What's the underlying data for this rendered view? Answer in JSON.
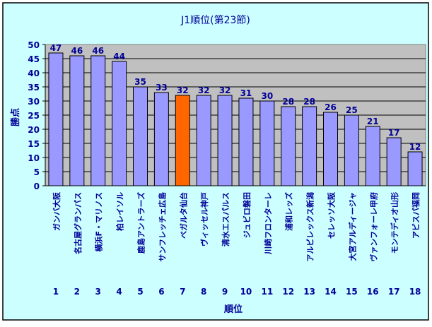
{
  "chart_data": {
    "type": "bar",
    "title": "J1順位(第23節)",
    "xlabel": "順位",
    "ylabel": "勝点",
    "ylim": [
      0,
      50
    ],
    "yticks": [
      0,
      5,
      10,
      15,
      20,
      25,
      30,
      35,
      40,
      45,
      50
    ],
    "grid": true,
    "legend": "none",
    "ranks": [
      "1",
      "2",
      "3",
      "4",
      "5",
      "6",
      "7",
      "8",
      "9",
      "10",
      "11",
      "12",
      "13",
      "14",
      "15",
      "16",
      "17",
      "18"
    ],
    "categories": [
      "ガンバ大阪",
      "名古屋グランパス",
      "横浜F・マリノス",
      "柏レイソル",
      "鹿島アントラーズ",
      "サンフレッチェ広島",
      "ベガルタ仙台",
      "ヴィッセル神戸",
      "清水エスパルス",
      "ジュビロ磐田",
      "川崎フロンターレ",
      "浦和レッズ",
      "アルビレックス新潟",
      "セレッソ大阪",
      "大宮アルディージャ",
      "ヴァンフォーレ甲府",
      "モンテディオ山形",
      "アビスパ福岡"
    ],
    "values": [
      47,
      46,
      46,
      44,
      35,
      33,
      32,
      32,
      32,
      31,
      30,
      28,
      28,
      26,
      25,
      21,
      17,
      12
    ],
    "highlight_index": 6,
    "colors": {
      "bar": "#9999FF",
      "highlight": "#FF6600",
      "plot_background": "#C0C0C0",
      "chart_background": "#CCFFFF",
      "text": "#000099"
    }
  }
}
